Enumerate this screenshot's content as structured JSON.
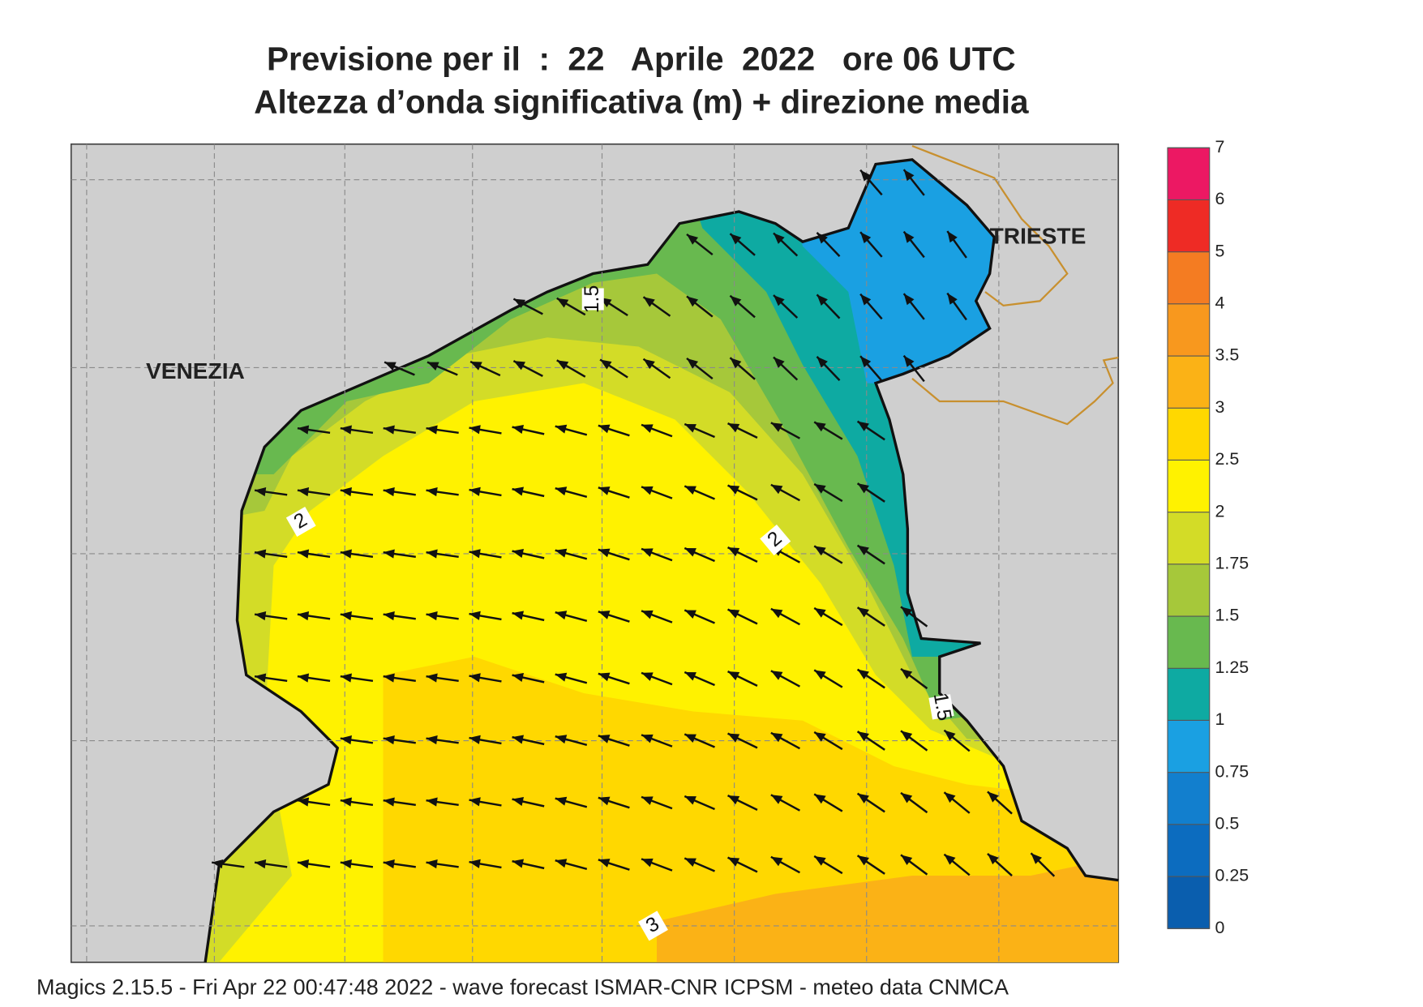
{
  "title": "Previsione per il  :  22   Aprile  2022   ore 06 UTC",
  "subtitle": "Altezza d’onda significativa (m) + direzione media",
  "map": {
    "city_labels": [
      "VENEZIA",
      "TRIESTE"
    ],
    "contour_labels": [
      "1.5",
      "2",
      "2",
      "1.5",
      "3"
    ]
  },
  "colorbar": {
    "ticks": [
      0,
      0.25,
      0.5,
      0.75,
      1,
      1.25,
      1.5,
      1.75,
      2,
      2.5,
      3,
      3.5,
      4,
      5,
      6,
      7
    ],
    "colors": [
      "#0a5eae",
      "#0c6cbf",
      "#127fce",
      "#1aa0e2",
      "#0eaaa2",
      "#68b94f",
      "#a6c83a",
      "#d3dc27",
      "#fff200",
      "#ffd800",
      "#fbb216",
      "#f8981e",
      "#f47c22",
      "#ee2b25",
      "#ec1863"
    ]
  },
  "footer": "Magics 2.15.5 - Fri Apr 22 00:47:48 2022 - wave forecast  ISMAR-CNR  ICPSM - meteo data   CNMCA"
}
